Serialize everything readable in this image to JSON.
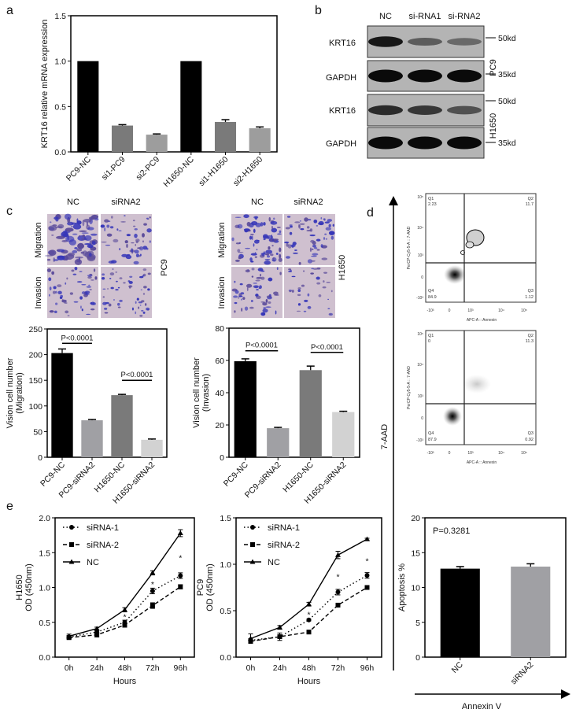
{
  "panels": {
    "a": "a",
    "b": "b",
    "c": "c",
    "d": "d",
    "e": "e"
  },
  "chart_data": [
    {
      "id": "a",
      "type": "bar",
      "ylabel": "KRT16 relative mRNA expression",
      "ylim": [
        0,
        1.5
      ],
      "yticks": [
        "0.0",
        "0.5",
        "1.0",
        "1.5"
      ],
      "ytick_values": [
        0,
        0.5,
        1.0,
        1.5
      ],
      "categories": [
        "PC9-NC",
        "si1-PC9",
        "si2-PC9",
        "H1650-NC",
        "si1-H1650",
        "si2-H1650"
      ],
      "values": [
        1.0,
        0.29,
        0.19,
        1.0,
        0.33,
        0.26
      ],
      "errors": [
        0,
        0.01,
        0.008,
        0,
        0.025,
        0.015
      ],
      "colors": [
        "#000000",
        "#7a7a7a",
        "#9d9d9d",
        "#000000",
        "#7a7a7a",
        "#9d9d9d"
      ]
    },
    {
      "id": "c1",
      "type": "bar",
      "ylabel": [
        "Vision cell number",
        "(Migration)"
      ],
      "ylim": [
        0,
        250
      ],
      "yticks": [
        "0",
        "50",
        "100",
        "150",
        "200",
        "250"
      ],
      "ytick_values": [
        0,
        50,
        100,
        150,
        200,
        250
      ],
      "categories": [
        "PC9-NC",
        "PC9-siRNA2",
        "H1650-NC",
        "H1650-siRNA2"
      ],
      "values": [
        203,
        72,
        121,
        34
      ],
      "errors": [
        8,
        1.5,
        1.5,
        1.5
      ],
      "colors": [
        "#000000",
        "#a0a0a4",
        "#7a7a7a",
        "#d2d2d2"
      ],
      "annotations": [
        {
          "text": "P<0.0001",
          "from": 0,
          "to": 1,
          "y": 222
        },
        {
          "text": "P<0.0001",
          "from": 2,
          "to": 3,
          "y": 150
        }
      ]
    },
    {
      "id": "c2",
      "type": "bar",
      "ylabel": [
        "Vision cell number",
        "(Invasion)"
      ],
      "ylim": [
        0,
        80
      ],
      "yticks": [
        "0",
        "20",
        "40",
        "60",
        "80"
      ],
      "ytick_values": [
        0,
        20,
        40,
        60,
        80
      ],
      "categories": [
        "PC9-NC",
        "PC9-siRNA2",
        "H1650-NC",
        "H1650-siRNA2"
      ],
      "values": [
        59.5,
        18,
        54,
        28
      ],
      "errors": [
        1.5,
        0.5,
        2.5,
        0.5
      ],
      "colors": [
        "#000000",
        "#a0a0a4",
        "#7a7a7a",
        "#d2d2d2"
      ],
      "annotations": [
        {
          "text": "P<0.0001",
          "from": 0,
          "to": 1,
          "y": 66
        },
        {
          "text": "P<0.0001",
          "from": 2,
          "to": 3,
          "y": 65
        }
      ]
    },
    {
      "id": "d",
      "type": "bar",
      "ylabel": "Apoptosis %",
      "ylim": [
        0,
        20
      ],
      "yticks": [
        "0",
        "5",
        "10",
        "15",
        "20"
      ],
      "ytick_values": [
        0,
        5,
        10,
        15,
        20
      ],
      "categories": [
        "NC",
        "siRNA2"
      ],
      "values": [
        12.7,
        13.0
      ],
      "errors": [
        0.3,
        0.4
      ],
      "colors": [
        "#000000",
        "#a0a0a4"
      ],
      "p_text": "P=0.3281"
    },
    {
      "id": "e1",
      "type": "line",
      "ylabel": [
        "H1650",
        "OD (450nm)"
      ],
      "xlabel": "Hours",
      "ylim": [
        0,
        2.0
      ],
      "yticks": [
        "0.0",
        "0.5",
        "1.0",
        "1.5",
        "2.0"
      ],
      "ytick_values": [
        0,
        0.5,
        1.0,
        1.5,
        2.0
      ],
      "x": [
        "0h",
        "24h",
        "48h",
        "72h",
        "96h"
      ],
      "series": [
        {
          "name": "siRNA-1",
          "values": [
            0.29,
            0.36,
            0.5,
            0.95,
            1.17
          ],
          "errors": [
            0.02,
            0.02,
            0.03,
            0.04,
            0.04
          ],
          "marker": "circle",
          "dash": "dotted"
        },
        {
          "name": "siRNA-2",
          "values": [
            0.28,
            0.32,
            0.46,
            0.74,
            1.01
          ],
          "errors": [
            0.02,
            0.03,
            0.03,
            0.04,
            0.03
          ],
          "marker": "square",
          "dash": "dashed"
        },
        {
          "name": "NC",
          "values": [
            0.3,
            0.41,
            0.68,
            1.21,
            1.78
          ],
          "errors": [
            0.03,
            0.02,
            0.03,
            0.03,
            0.05
          ],
          "marker": "triangle",
          "dash": "solid"
        }
      ],
      "stars": [
        {
          "x": "48h",
          "y": 0.58,
          "text": "*"
        },
        {
          "x": "72h",
          "y": 1.05,
          "text": "*"
        },
        {
          "x": "96h",
          "y": 1.43,
          "text": "*"
        }
      ],
      "legend": "top-left"
    },
    {
      "id": "e2",
      "type": "line",
      "ylabel": [
        "PC9",
        "OD (450nm)"
      ],
      "xlabel": "Hours",
      "ylim": [
        0,
        1.5
      ],
      "yticks": [
        "0.0",
        "0.5",
        "1.0",
        "1.5"
      ],
      "ytick_values": [
        0,
        0.5,
        1.0,
        1.5
      ],
      "x": [
        "0h",
        "24h",
        "48h",
        "72h",
        "96h"
      ],
      "series": [
        {
          "name": "siRNA-1",
          "values": [
            0.18,
            0.22,
            0.4,
            0.7,
            0.88
          ],
          "errors": [
            0.02,
            0.02,
            0.01,
            0.03,
            0.03
          ],
          "marker": "circle",
          "dash": "dotted"
        },
        {
          "name": "siRNA-2",
          "values": [
            0.17,
            0.22,
            0.27,
            0.56,
            0.75
          ],
          "errors": [
            0.02,
            0.04,
            0.01,
            0.01,
            0.02
          ],
          "marker": "square",
          "dash": "dashed"
        },
        {
          "name": "NC",
          "values": [
            0.2,
            0.32,
            0.57,
            1.1,
            1.27
          ],
          "errors": [
            0.05,
            0.02,
            0.02,
            0.04,
            0.01
          ],
          "marker": "triangle",
          "dash": "solid"
        }
      ],
      "stars": [
        {
          "x": "48h",
          "y": 0.46,
          "text": "*"
        },
        {
          "x": "72h",
          "y": 0.87,
          "text": "*"
        },
        {
          "x": "96h",
          "y": 1.04,
          "text": "*"
        }
      ],
      "legend": "top-left"
    }
  ],
  "western_blot": {
    "columns": [
      "NC",
      "si-RNA1",
      "si-RNA2"
    ],
    "rows": [
      "KRT16",
      "GAPDH",
      "KRT16",
      "GAPDH"
    ],
    "markers": [
      "50kd",
      "35kd",
      "50kd",
      "35kd"
    ],
    "cell_lines": [
      "PC9",
      "H1650"
    ],
    "band_intensity": [
      [
        0.9,
        0.35,
        0.25
      ],
      [
        1,
        1,
        1
      ],
      [
        0.75,
        0.65,
        0.45
      ],
      [
        1,
        1,
        1
      ]
    ]
  },
  "transwell": {
    "columns": [
      "NC",
      "siRNA2"
    ],
    "rows": [
      "Migration",
      "Invasion"
    ],
    "cell_lines": [
      "PC9",
      "H1650"
    ]
  },
  "flow": {
    "y_axis_title": "7-AAD",
    "x_axis_title": "Annexin V",
    "plot_xlabel": "APC-A :: Annexin",
    "plot_ylabel": "PerCP-Cy5-5-A :: 7-AAD",
    "x_ticks": [
      "-10³",
      "0",
      "10³",
      "10⁴",
      "10⁵"
    ],
    "y_ticks": [
      "10⁵",
      "10⁴",
      "10³",
      "0",
      "-10³"
    ],
    "plots": [
      {
        "q1": "Q1",
        "q1v": "2.23",
        "q2": "Q2",
        "q2v": "11.7",
        "q3": "Q3",
        "q3v": "1.12",
        "q4": "Q4",
        "q4v": "84.9"
      },
      {
        "q1": "Q1",
        "q1v": "0",
        "q2": "Q2",
        "q2v": "11.3",
        "q3": "Q3",
        "q3v": "0.92",
        "q4": "Q4",
        "q4v": "87.9"
      }
    ]
  }
}
